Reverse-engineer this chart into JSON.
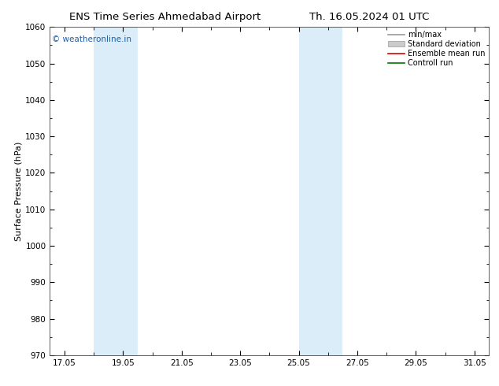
{
  "title_left": "ENS Time Series Ahmedabad Airport",
  "title_right": "Th. 16.05.2024 01 UTC",
  "ylabel": "Surface Pressure (hPa)",
  "ylim": [
    970,
    1060
  ],
  "yticks": [
    970,
    980,
    990,
    1000,
    1010,
    1020,
    1030,
    1040,
    1050,
    1060
  ],
  "xtick_labels": [
    "17.05",
    "19.05",
    "21.05",
    "23.05",
    "25.05",
    "27.05",
    "29.05",
    "31.05"
  ],
  "xtick_days": [
    17,
    19,
    21,
    23,
    25,
    27,
    29,
    31
  ],
  "xlim_days": [
    16.5,
    31.5
  ],
  "shaded_bands": [
    {
      "start_day": 18.0,
      "end_day": 19.5
    },
    {
      "start_day": 25.0,
      "end_day": 26.5
    }
  ],
  "shaded_color": "#daedf8",
  "watermark_text": "© weatheronline.in",
  "watermark_color": "#1a5fb0",
  "bg_color": "#ffffff",
  "plot_bg_color": "#ffffff",
  "legend_items": [
    {
      "label": "min/max",
      "color": "#999999",
      "type": "line"
    },
    {
      "label": "Standard deviation",
      "color": "#cccccc",
      "type": "fill"
    },
    {
      "label": "Ensemble mean run",
      "color": "#dd0000",
      "type": "line"
    },
    {
      "label": "Controll run",
      "color": "#007700",
      "type": "line"
    }
  ],
  "title_fontsize": 9.5,
  "ylabel_fontsize": 8,
  "tick_fontsize": 7.5,
  "legend_fontsize": 7,
  "watermark_fontsize": 7.5
}
